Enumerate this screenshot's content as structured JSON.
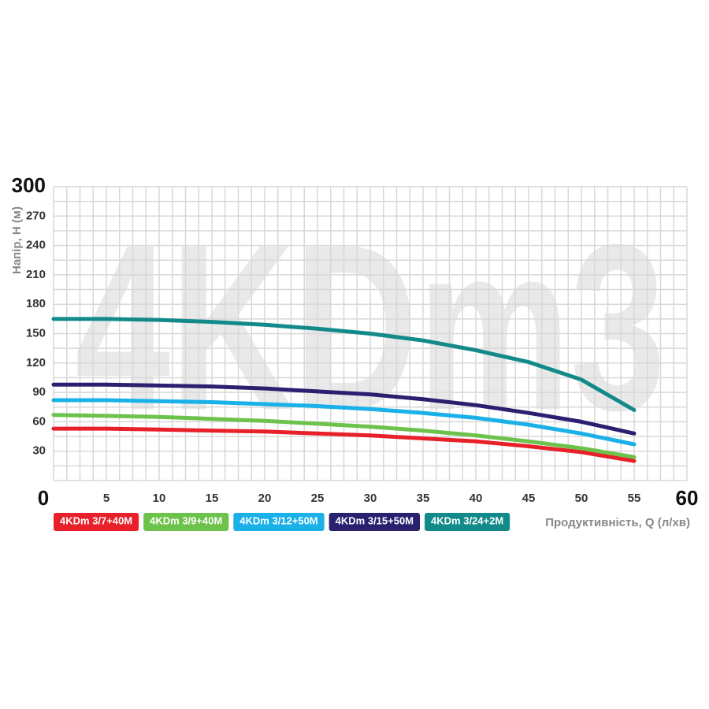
{
  "chart_data": {
    "type": "line",
    "watermark": "4KDm3",
    "x_label": "Продуктивність, Q (л/хв)",
    "y_label": "Напір, Н (м)",
    "x": [
      0,
      5,
      10,
      15,
      20,
      25,
      30,
      35,
      40,
      45,
      50,
      55
    ],
    "series": [
      {
        "name": "4KDm 3/7+40M",
        "color": "#e8202a",
        "values": [
          53,
          53,
          52,
          51,
          50,
          48,
          46,
          43,
          40,
          35,
          29,
          20
        ]
      },
      {
        "name": "4KDm 3/9+40M",
        "color": "#6cc24a",
        "values": [
          67,
          66,
          65,
          63,
          61,
          58,
          55,
          51,
          46,
          40,
          33,
          24
        ]
      },
      {
        "name": "4KDm 3/12+50M",
        "color": "#1ab0e8",
        "values": [
          82,
          82,
          81,
          80,
          78,
          76,
          73,
          69,
          64,
          57,
          48,
          37
        ]
      },
      {
        "name": "4KDm 3/15+50M",
        "color": "#2a2070",
        "values": [
          98,
          98,
          97,
          96,
          94,
          91,
          88,
          83,
          77,
          69,
          60,
          48
        ]
      },
      {
        "name": "4KDm 3/24+2M",
        "color": "#138a8a",
        "values": [
          165,
          165,
          164,
          162,
          159,
          155,
          150,
          143,
          133,
          121,
          103,
          72
        ]
      }
    ],
    "xlim": [
      0,
      60
    ],
    "xticks": [
      0,
      5,
      10,
      15,
      20,
      25,
      30,
      35,
      40,
      45,
      50,
      55,
      60
    ],
    "ylim": [
      0,
      300
    ],
    "yticks": [
      0,
      30,
      60,
      90,
      120,
      150,
      180,
      210,
      240,
      270,
      300
    ],
    "grid": true
  }
}
